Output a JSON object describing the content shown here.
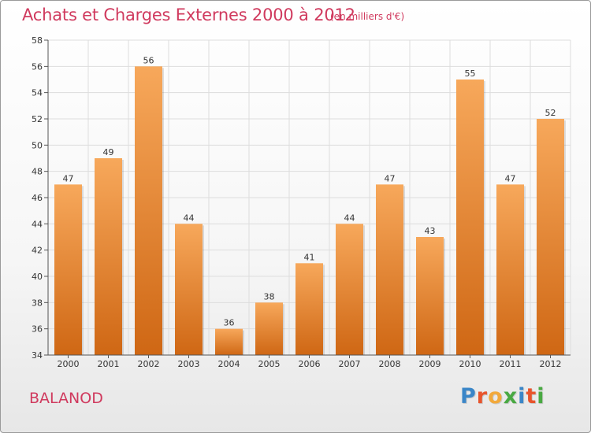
{
  "title": "Achats et Charges Externes 2000 à 2012",
  "subtitle": "(en milliers d'€)",
  "location": "BALANOD",
  "logo": {
    "letters": [
      "P",
      "r",
      "o",
      "x",
      "i",
      "t",
      "i"
    ],
    "colors": [
      "#3a86c8",
      "#e8542c",
      "#f2a93b",
      "#49a942",
      "#3a86c8",
      "#e8542c",
      "#49a942"
    ]
  },
  "colors": {
    "accent": "#d03a5e",
    "bar_top": "#f7a85b",
    "bar_bottom": "#cf6714"
  },
  "chart_data": {
    "type": "bar",
    "categories": [
      "2000",
      "2001",
      "2002",
      "2003",
      "2004",
      "2005",
      "2006",
      "2007",
      "2008",
      "2009",
      "2010",
      "2011",
      "2012"
    ],
    "values": [
      47,
      49,
      56,
      44,
      36,
      38,
      41,
      44,
      47,
      43,
      55,
      47,
      52
    ],
    "ylim": [
      34,
      58
    ],
    "yticks": [
      34,
      36,
      38,
      40,
      42,
      44,
      46,
      48,
      50,
      52,
      54,
      56,
      58
    ],
    "grid": true,
    "data_labels": true
  }
}
